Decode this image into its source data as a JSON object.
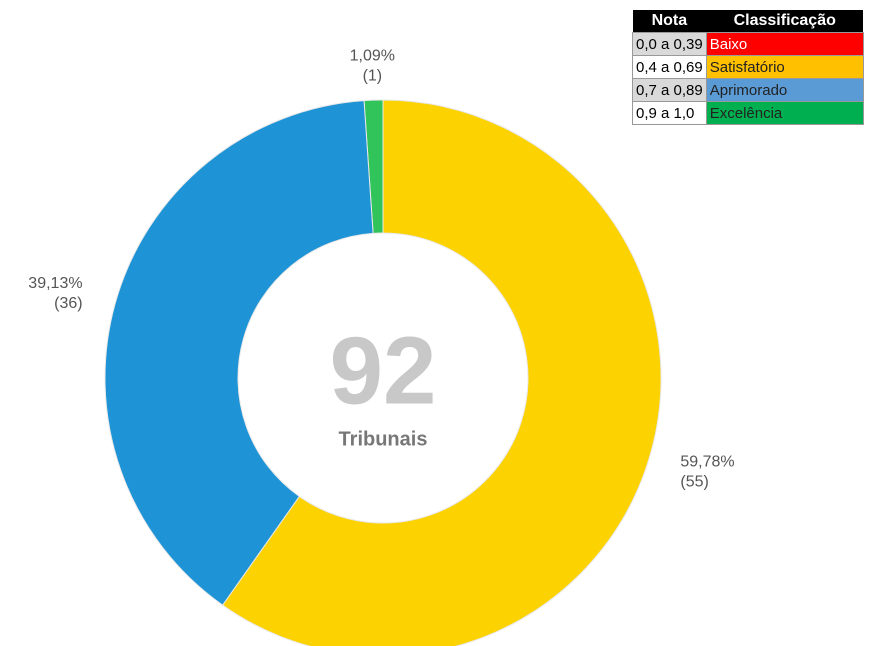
{
  "chart_data": {
    "type": "donut",
    "categories": [
      "Satisfatório",
      "Aprimorado",
      "Excelência"
    ],
    "values": [
      55,
      36,
      1
    ],
    "value_labels": [
      "(55)",
      "(36)",
      "(1)"
    ],
    "percent_labels": [
      "59,78%",
      "39,13%",
      "1,09%"
    ],
    "colors": [
      "#fcd200",
      "#1e94d6",
      "#30c45a"
    ],
    "total": 92,
    "total_label": "Tribunais"
  },
  "table": {
    "header": [
      "Nota",
      "Classificação"
    ],
    "rows": [
      [
        "0,0 a 0,39",
        "Baixo"
      ],
      [
        "0,4 a 0,69",
        "Satisfatório"
      ],
      [
        "0,7 a 0,89",
        "Aprimorado"
      ],
      [
        "0,9 a 1,0",
        "Excelência"
      ]
    ],
    "colors": [
      "#ff0000",
      "#ffc000",
      "#5b9bd5",
      "#00b050"
    ]
  }
}
